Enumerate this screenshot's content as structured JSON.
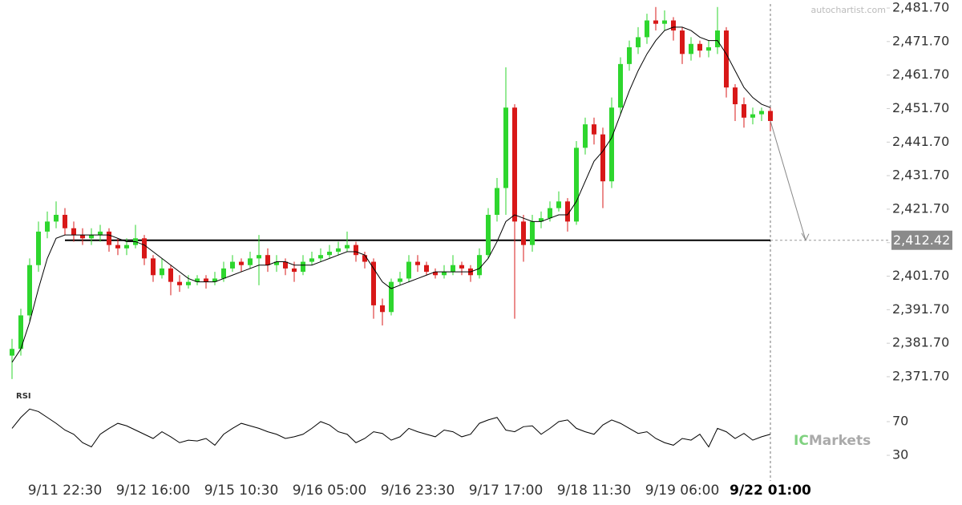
{
  "chart_data": {
    "type": "candlestick",
    "watermark": "autochartist.com",
    "brand": [
      "IC",
      "Markets"
    ],
    "up_color": "#2ed62e",
    "down_color": "#d81818",
    "ma_color": "#000000",
    "categories": [
      null,
      null,
      null,
      null,
      null,
      null,
      "9/11 22:30",
      null,
      null,
      null,
      null,
      null,
      null,
      null,
      null,
      null,
      "9/12 16:00",
      null,
      null,
      null,
      null,
      null,
      null,
      null,
      null,
      null,
      "9/15 10:30",
      null,
      null,
      null,
      null,
      null,
      null,
      null,
      null,
      null,
      "9/16 05:00",
      null,
      null,
      null,
      null,
      null,
      null,
      null,
      null,
      null,
      "9/16 23:30",
      null,
      null,
      null,
      null,
      null,
      null,
      null,
      null,
      null,
      "9/17 17:00",
      null,
      null,
      null,
      null,
      null,
      null,
      null,
      null,
      null,
      "9/18 11:30",
      null,
      null,
      null,
      null,
      null,
      null,
      null,
      null,
      null,
      "9/19 06:00",
      null,
      null,
      null,
      null,
      null,
      null,
      null,
      null,
      null,
      "9/22 01:00"
    ],
    "open": [
      2378,
      2380,
      2390,
      2405,
      2415,
      2418,
      2420,
      2416,
      2414,
      2413,
      2414,
      2415,
      2411,
      2410,
      2411,
      2413,
      2407,
      2402,
      2404,
      2400,
      2399,
      2400,
      2401,
      2400,
      2401,
      2404,
      2406,
      2405,
      2407,
      2408,
      2405,
      2406,
      2404,
      2403,
      2406,
      2407,
      2408,
      2409,
      2410,
      2411,
      2408,
      2406,
      2393,
      2391,
      2400,
      2401,
      2406,
      2405,
      2403,
      2402,
      2403,
      2405,
      2404,
      2402,
      2408,
      2420,
      2428,
      2452,
      2418,
      2411,
      2418,
      2419,
      2422,
      2424,
      2418,
      2440,
      2447,
      2444,
      2430,
      2452,
      2465,
      2470,
      2473,
      2478,
      2477,
      2478,
      2475,
      2468,
      2471,
      2469,
      2470,
      2475,
      2458,
      2453,
      2449,
      2450,
      2451
    ],
    "high": [
      2383,
      2392,
      2407,
      2418,
      2421,
      2424,
      2422,
      2418,
      2416,
      2416,
      2417,
      2416,
      2413,
      2413,
      2417,
      2414,
      2408,
      2407,
      2405,
      2402,
      2402,
      2402,
      2402,
      2403,
      2406,
      2408,
      2407,
      2409,
      2414,
      2410,
      2408,
      2407,
      2406,
      2408,
      2409,
      2410,
      2411,
      2412,
      2415,
      2412,
      2409,
      2407,
      2395,
      2401,
      2403,
      2408,
      2408,
      2406,
      2404,
      2405,
      2408,
      2406,
      2405,
      2410,
      2422,
      2431,
      2464,
      2453,
      2420,
      2420,
      2421,
      2424,
      2427,
      2425,
      2442,
      2449,
      2449,
      2446,
      2455,
      2467,
      2472,
      2476,
      2480,
      2482,
      2481,
      2479,
      2476,
      2473,
      2472,
      2472,
      2482,
      2476,
      2459,
      2455,
      2452,
      2452,
      2452
    ],
    "low": [
      2371,
      2378,
      2388,
      2403,
      2413,
      2416,
      2414,
      2412,
      2411,
      2411,
      2412,
      2409,
      2408,
      2408,
      2410,
      2405,
      2400,
      2401,
      2396,
      2397,
      2398,
      2399,
      2398,
      2399,
      2400,
      2403,
      2403,
      2404,
      2399,
      2403,
      2403,
      2402,
      2400,
      2402,
      2405,
      2406,
      2407,
      2408,
      2409,
      2406,
      2404,
      2389,
      2387,
      2390,
      2399,
      2400,
      2403,
      2402,
      2401,
      2401,
      2402,
      2402,
      2400,
      2401,
      2407,
      2418,
      2420,
      2389,
      2406,
      2409,
      2416,
      2418,
      2421,
      2415,
      2417,
      2438,
      2441,
      2422,
      2428,
      2450,
      2463,
      2468,
      2471,
      2475,
      2475,
      2472,
      2465,
      2466,
      2467,
      2467,
      2468,
      2455,
      2448,
      2446,
      2447,
      2448,
      2445
    ],
    "close": [
      2380,
      2390,
      2405,
      2415,
      2418,
      2420,
      2416,
      2414,
      2413,
      2414,
      2415,
      2411,
      2410,
      2411,
      2413,
      2407,
      2402,
      2404,
      2400,
      2399,
      2400,
      2401,
      2400,
      2401,
      2404,
      2406,
      2405,
      2407,
      2408,
      2405,
      2406,
      2404,
      2403,
      2406,
      2407,
      2408,
      2409,
      2410,
      2411,
      2408,
      2406,
      2393,
      2391,
      2400,
      2401,
      2406,
      2405,
      2403,
      2402,
      2403,
      2405,
      2404,
      2402,
      2408,
      2420,
      2428,
      2452,
      2418,
      2411,
      2418,
      2419,
      2422,
      2424,
      2418,
      2440,
      2447,
      2444,
      2430,
      2452,
      2465,
      2470,
      2473,
      2478,
      2477,
      2478,
      2475,
      2468,
      2471,
      2469,
      2470,
      2475,
      2458,
      2453,
      2449,
      2450,
      2451,
      2448
    ],
    "ma": [
      2376,
      2380,
      2388,
      2398,
      2407,
      2413,
      2414,
      2414,
      2414,
      2414,
      2414,
      2414,
      2413,
      2412,
      2412,
      2411,
      2409,
      2407,
      2405,
      2403,
      2401,
      2400,
      2400,
      2400,
      2401,
      2402,
      2403,
      2404,
      2405,
      2405,
      2406,
      2406,
      2405,
      2405,
      2405,
      2406,
      2407,
      2408,
      2409,
      2409,
      2408,
      2404,
      2400,
      2398,
      2399,
      2400,
      2401,
      2402,
      2403,
      2403,
      2403,
      2403,
      2403,
      2404,
      2407,
      2412,
      2418,
      2420,
      2419,
      2418,
      2418,
      2419,
      2420,
      2420,
      2424,
      2430,
      2436,
      2439,
      2443,
      2450,
      2457,
      2463,
      2468,
      2472,
      2475,
      2476,
      2476,
      2475,
      2473,
      2472,
      2472,
      2468,
      2463,
      2458,
      2455,
      2453,
      2452
    ],
    "ylim": [
      2369.3,
      2484.1
    ],
    "yticks": [
      {
        "value": 2371.7,
        "label": "2,371.70"
      },
      {
        "value": 2381.7,
        "label": "2,381.70"
      },
      {
        "value": 2391.7,
        "label": "2,391.70"
      },
      {
        "value": 2401.7,
        "label": "2,401.70"
      },
      {
        "value": 2411.7,
        "label": "2,411.70"
      },
      {
        "value": 2421.7,
        "label": "2,421.70"
      },
      {
        "value": 2431.7,
        "label": "2,431.70"
      },
      {
        "value": 2441.7,
        "label": "2,441.70"
      },
      {
        "value": 2451.7,
        "label": "2,451.70"
      },
      {
        "value": 2461.7,
        "label": "2,461.70"
      },
      {
        "value": 2471.7,
        "label": "2,471.70"
      },
      {
        "value": 2481.7,
        "label": "2,481.70"
      }
    ],
    "level": {
      "value": 2412.42,
      "label": "2,412.42"
    },
    "rsi": {
      "label": "RSI",
      "ylim": [
        0,
        100
      ],
      "yticks": [
        30,
        70
      ],
      "values": [
        62,
        75,
        85,
        82,
        75,
        68,
        60,
        55,
        45,
        40,
        55,
        62,
        68,
        65,
        60,
        55,
        50,
        58,
        52,
        45,
        48,
        47,
        50,
        42,
        55,
        62,
        68,
        65,
        62,
        58,
        55,
        50,
        52,
        55,
        62,
        70,
        66,
        58,
        55,
        45,
        50,
        58,
        56,
        48,
        52,
        62,
        58,
        55,
        52,
        60,
        58,
        52,
        55,
        68,
        72,
        75,
        60,
        58,
        64,
        65,
        55,
        62,
        70,
        72,
        62,
        58,
        55,
        66,
        72,
        68,
        62,
        56,
        58,
        50,
        45,
        42,
        50,
        48,
        55,
        40,
        62,
        58,
        50,
        56,
        48,
        52,
        55
      ]
    }
  }
}
